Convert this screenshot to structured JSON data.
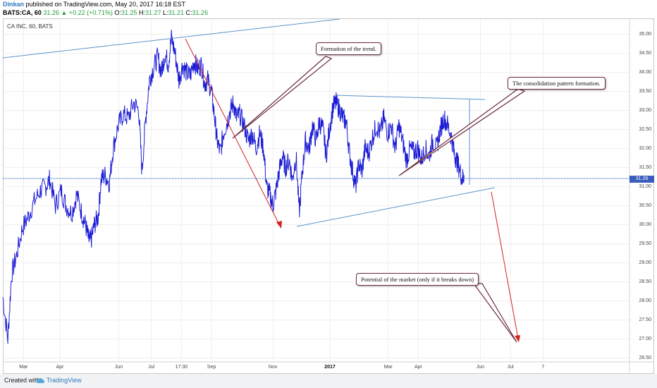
{
  "header": {
    "author": "Dinkan",
    "published_text": " published on TradingView.com, May 20, 2017 16:18 EST",
    "symbol": "BATS:CA, 60",
    "last": "31.26",
    "change": "▲ +0.22 (+0.71%)",
    "ohlc_o_label": "O:",
    "ohlc_o": "31.25",
    "ohlc_h_label": "H:",
    "ohlc_h": "31.27",
    "ohlc_l_label": "L:",
    "ohlc_l": "31.21",
    "ohlc_c_label": "C:",
    "ohlc_c": "31.26"
  },
  "chart_label": "CA INC, 60, BATS",
  "footer": {
    "created_with": "Created with",
    "brand": "TradingView",
    "logo_icon": "tradingview-cloud-icon"
  },
  "colors": {
    "price_line": "#1b1bd6",
    "trend_line": "#5b93c9",
    "arrow": "#d42020",
    "callout_border": "#6b2a3b",
    "badge": "#3a5dbd"
  },
  "chart_data": {
    "type": "line",
    "title": "CA INC, 60, BATS",
    "y_axis_position": "right",
    "ylim": [
      26.4,
      35.4
    ],
    "y_ticks": [
      "26.50",
      "27.00",
      "27.50",
      "28.00",
      "28.50",
      "29.00",
      "29.50",
      "30.00",
      "30.50",
      "31.00",
      "31.50",
      "32.00",
      "32.50",
      "33.00",
      "33.50",
      "34.00",
      "34.50",
      "35.00"
    ],
    "x_ticks": [
      {
        "label": "Mar",
        "pos": 0.033
      },
      {
        "label": "Apr",
        "pos": 0.091
      },
      {
        "label": "Jun",
        "pos": 0.185
      },
      {
        "label": "Jul",
        "pos": 0.237
      },
      {
        "label": "17:30",
        "pos": 0.285
      },
      {
        "label": "Sep",
        "pos": 0.333
      },
      {
        "label": "Nov",
        "pos": 0.431
      },
      {
        "label": "2017",
        "pos": 0.522,
        "bold": true
      },
      {
        "label": "Mar",
        "pos": 0.615
      },
      {
        "label": "Apr",
        "pos": 0.663
      },
      {
        "label": "Jun",
        "pos": 0.762
      },
      {
        "label": "Jul",
        "pos": 0.81
      },
      {
        "label": "7",
        "pos": 0.862
      }
    ],
    "last_price": "31.26",
    "grid": true,
    "series": [
      {
        "points": [
          [
            0.0,
            28.1
          ],
          [
            0.008,
            27.0
          ],
          [
            0.014,
            28.7
          ],
          [
            0.022,
            29.2
          ],
          [
            0.031,
            29.9
          ],
          [
            0.04,
            30.2
          ],
          [
            0.05,
            30.6
          ],
          [
            0.06,
            30.9
          ],
          [
            0.068,
            31.0
          ],
          [
            0.075,
            31.2
          ],
          [
            0.084,
            30.5
          ],
          [
            0.093,
            30.9
          ],
          [
            0.101,
            30.5
          ],
          [
            0.11,
            30.3
          ],
          [
            0.118,
            30.8
          ],
          [
            0.126,
            30.3
          ],
          [
            0.132,
            30.0
          ],
          [
            0.137,
            29.6
          ],
          [
            0.141,
            29.6
          ],
          [
            0.146,
            30.0
          ],
          [
            0.152,
            30.2
          ],
          [
            0.157,
            31.2
          ],
          [
            0.163,
            31.3
          ],
          [
            0.17,
            31.1
          ],
          [
            0.176,
            32.0
          ],
          [
            0.184,
            32.6
          ],
          [
            0.192,
            32.9
          ],
          [
            0.2,
            32.8
          ],
          [
            0.209,
            33.2
          ],
          [
            0.217,
            33.0
          ],
          [
            0.222,
            31.4
          ],
          [
            0.228,
            32.8
          ],
          [
            0.234,
            33.8
          ],
          [
            0.24,
            34.1
          ],
          [
            0.247,
            34.4
          ],
          [
            0.253,
            34.0
          ],
          [
            0.259,
            34.5
          ],
          [
            0.264,
            34.2
          ],
          [
            0.269,
            34.9
          ],
          [
            0.275,
            34.5
          ],
          [
            0.281,
            33.8
          ],
          [
            0.287,
            34.2
          ],
          [
            0.293,
            34.0
          ],
          [
            0.299,
            33.9
          ],
          [
            0.305,
            34.3
          ],
          [
            0.311,
            34.1
          ],
          [
            0.317,
            34.2
          ],
          [
            0.322,
            33.7
          ],
          [
            0.327,
            33.8
          ],
          [
            0.333,
            33.5
          ],
          [
            0.338,
            32.8
          ],
          [
            0.342,
            32.2
          ],
          [
            0.347,
            31.9
          ],
          [
            0.352,
            32.4
          ],
          [
            0.358,
            32.7
          ],
          [
            0.363,
            33.0
          ],
          [
            0.368,
            33.2
          ],
          [
            0.373,
            32.8
          ],
          [
            0.378,
            32.9
          ],
          [
            0.385,
            32.6
          ],
          [
            0.392,
            32.2
          ],
          [
            0.398,
            32.4
          ],
          [
            0.404,
            32.0
          ],
          [
            0.41,
            32.4
          ],
          [
            0.416,
            32.0
          ],
          [
            0.421,
            31.0
          ],
          [
            0.426,
            30.8
          ],
          [
            0.431,
            30.5
          ],
          [
            0.436,
            30.9
          ],
          [
            0.441,
            31.4
          ],
          [
            0.446,
            31.8
          ],
          [
            0.451,
            31.5
          ],
          [
            0.457,
            31.7
          ],
          [
            0.462,
            31.2
          ],
          [
            0.468,
            31.8
          ],
          [
            0.473,
            30.3
          ],
          [
            0.478,
            31.4
          ],
          [
            0.483,
            32.2
          ],
          [
            0.489,
            32.0
          ],
          [
            0.494,
            32.6
          ],
          [
            0.5,
            32.2
          ],
          [
            0.505,
            32.7
          ],
          [
            0.511,
            32.5
          ],
          [
            0.516,
            31.8
          ],
          [
            0.521,
            32.5
          ],
          [
            0.527,
            33.1
          ],
          [
            0.532,
            33.2
          ],
          [
            0.538,
            33.0
          ],
          [
            0.543,
            32.8
          ],
          [
            0.548,
            32.7
          ],
          [
            0.553,
            31.9
          ],
          [
            0.558,
            31.4
          ],
          [
            0.563,
            31.0
          ],
          [
            0.568,
            31.6
          ],
          [
            0.573,
            31.4
          ],
          [
            0.578,
            32.0
          ],
          [
            0.584,
            31.9
          ],
          [
            0.59,
            32.3
          ],
          [
            0.596,
            32.6
          ],
          [
            0.602,
            32.4
          ],
          [
            0.608,
            32.8
          ],
          [
            0.614,
            32.4
          ],
          [
            0.62,
            32.6
          ],
          [
            0.626,
            32.0
          ],
          [
            0.632,
            32.6
          ],
          [
            0.638,
            32.2
          ],
          [
            0.644,
            31.7
          ],
          [
            0.65,
            32.0
          ],
          [
            0.656,
            31.9
          ],
          [
            0.662,
            32.0
          ],
          [
            0.668,
            31.7
          ],
          [
            0.674,
            32.0
          ],
          [
            0.68,
            31.8
          ],
          [
            0.686,
            32.2
          ],
          [
            0.692,
            32.0
          ],
          [
            0.698,
            32.5
          ],
          [
            0.704,
            32.8
          ],
          [
            0.71,
            32.6
          ],
          [
            0.716,
            32.3
          ],
          [
            0.72,
            31.9
          ],
          [
            0.724,
            31.7
          ],
          [
            0.728,
            31.5
          ],
          [
            0.733,
            31.2
          ],
          [
            0.736,
            31.3
          ]
        ]
      }
    ],
    "annotations": [
      {
        "text": "Formation of the trend."
      },
      {
        "text": "The consolidation pattern formation."
      },
      {
        "text": "Potential of the market (only if it breaks down)"
      }
    ]
  }
}
